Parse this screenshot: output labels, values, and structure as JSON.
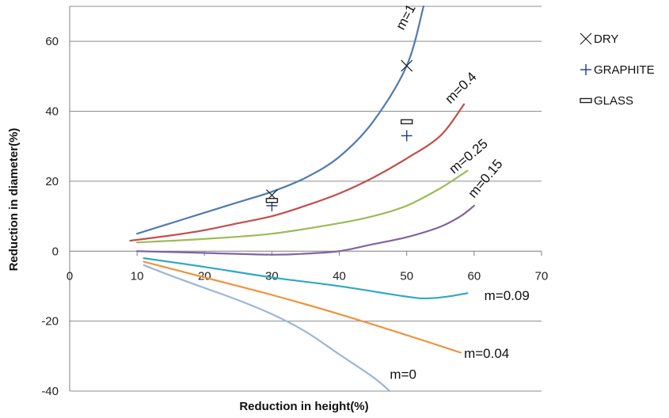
{
  "chart_data": {
    "type": "line",
    "title": "",
    "xlabel": "Reduction in height(%)",
    "ylabel": "Reduction in diameter(%)",
    "xlim": [
      0,
      70
    ],
    "ylim": [
      -40,
      70
    ],
    "xticks": [
      0,
      10,
      20,
      30,
      40,
      50,
      60,
      70
    ],
    "yticks": [
      -40,
      -20,
      0,
      20,
      40,
      60
    ],
    "grid": "horizontal",
    "legend_placement": "right",
    "series": [
      {
        "name": "m=1",
        "color": "#4f7bb1",
        "x": [
          10,
          15,
          20,
          25,
          30,
          35,
          40,
          45,
          50,
          52.5
        ],
        "y": [
          5,
          8,
          11,
          14,
          17,
          21,
          27,
          37,
          53,
          70
        ]
      },
      {
        "name": "m=0.4",
        "color": "#c0504d",
        "x": [
          9,
          15,
          20,
          25,
          30,
          35,
          40,
          45,
          50,
          55,
          58.5
        ],
        "y": [
          3,
          4.5,
          6,
          8,
          10,
          13,
          16.5,
          21,
          26.5,
          33,
          42
        ]
      },
      {
        "name": "m=0.25",
        "color": "#9bbb59",
        "x": [
          10,
          20,
          30,
          40,
          45,
          50,
          55,
          59
        ],
        "y": [
          2.5,
          3.5,
          5,
          8,
          10,
          13,
          18,
          23
        ]
      },
      {
        "name": "m=0.15",
        "color": "#8064a2",
        "x": [
          10,
          20,
          30,
          35,
          40,
          45,
          50,
          55,
          58,
          60
        ],
        "y": [
          0,
          -0.5,
          -1,
          -0.7,
          0,
          2,
          4,
          7,
          10,
          13
        ]
      },
      {
        "name": "m=0.09",
        "color": "#2fa8c4",
        "x": [
          11,
          20,
          30,
          40,
          50,
          53,
          56,
          59
        ],
        "y": [
          -2,
          -4.5,
          -7.5,
          -10,
          -13,
          -13.5,
          -13,
          -12
        ]
      },
      {
        "name": "m=0.04",
        "color": "#f0923c",
        "x": [
          11,
          20,
          30,
          40,
          50,
          58
        ],
        "y": [
          -3,
          -7.5,
          -12.5,
          -18,
          -24,
          -29
        ]
      },
      {
        "name": "m=0",
        "color": "#9bb7d6",
        "x": [
          11,
          15,
          20,
          25,
          30,
          35,
          40,
          45,
          47.5
        ],
        "y": [
          -4,
          -7,
          -10.5,
          -14,
          -18,
          -23,
          -29.5,
          -36,
          -40
        ]
      }
    ],
    "markers": [
      {
        "series": "DRY",
        "symbol": "x",
        "points": [
          [
            30,
            16
          ],
          [
            50,
            53
          ]
        ]
      },
      {
        "series": "GRAPHITE",
        "symbol": "+",
        "points": [
          [
            30,
            13
          ],
          [
            50,
            33
          ]
        ]
      },
      {
        "series": "GLASS",
        "symbol": "dash",
        "points": [
          [
            30,
            14.5
          ],
          [
            50,
            37
          ]
        ]
      }
    ],
    "legend": [
      {
        "label": "DRY",
        "symbol": "x"
      },
      {
        "label": "GRAPHITE",
        "symbol": "+"
      },
      {
        "label": "GLASS",
        "symbol": "dash"
      }
    ],
    "curve_labels": [
      {
        "text": "m=1",
        "x": 49.5,
        "y": 63,
        "angle": -62
      },
      {
        "text": "m=0.4",
        "x": 56.5,
        "y": 42,
        "angle": -45
      },
      {
        "text": "m=0.25",
        "x": 57,
        "y": 22,
        "angle": -40
      },
      {
        "text": "m=0.15",
        "x": 60,
        "y": 15,
        "angle": -50
      },
      {
        "text": "m=0.09",
        "x": 61.5,
        "y": -14,
        "angle": 0
      },
      {
        "text": "m=0.04",
        "x": 58.5,
        "y": -30.5,
        "angle": 0
      },
      {
        "text": "m=0",
        "x": 47.5,
        "y": -36.5,
        "angle": 0
      }
    ]
  }
}
